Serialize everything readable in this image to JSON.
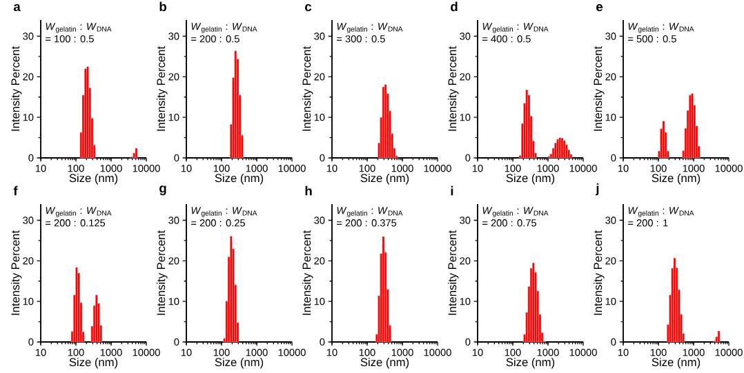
{
  "chart_data": [
    {
      "type": "histogram",
      "title": "a",
      "xlabel": "Size (nm)",
      "ylabel": "Intensity Percent",
      "annotations": [
        "*W*$_{gelatin}$ : *W*$_{DNA}$",
        "= 100 : 0.5"
      ],
      "bins": [
        130,
        150,
        174,
        201,
        232,
        268,
        310,
        358,
        414,
        478,
        552,
        638,
        738,
        853,
        985,
        1138,
        1315,
        1520,
        1757,
        2030,
        2346,
        2711,
        3133,
        3620,
        4184,
        4834,
        5586
      ],
      "values": [
        6.3,
        15.5,
        22.0,
        22.5,
        17.3,
        9.8,
        3.2,
        0,
        0,
        0,
        0,
        0,
        0,
        0,
        0,
        0,
        0,
        0,
        0,
        0,
        0,
        0,
        0,
        0.3,
        1.2,
        2.4
      ],
      "color": "#ff0000",
      "log": "x",
      "xlim": [
        10,
        10000
      ],
      "ylim": [
        0,
        34
      ],
      "xticks": [
        10,
        100,
        1000,
        10000
      ],
      "yticks": [
        0,
        10,
        20,
        30
      ]
    },
    {
      "type": "histogram",
      "title": "b",
      "xlabel": "Size (nm)",
      "ylabel": "Intensity Percent",
      "annotations": [
        "*W*$_{gelatin}$ : *W*$_{DNA}$",
        "= 200 : 0.5"
      ],
      "bins": [
        174,
        201,
        232,
        268,
        310,
        358,
        414
      ],
      "values": [
        8.3,
        19.8,
        26.4,
        24.4,
        15.5,
        5.6
      ],
      "color": "#ff0000",
      "log": "x",
      "xlim": [
        10,
        10000
      ],
      "ylim": [
        0,
        34
      ],
      "xticks": [
        10,
        100,
        1000,
        10000
      ],
      "yticks": [
        0,
        10,
        20,
        30
      ]
    },
    {
      "type": "histogram",
      "title": "c",
      "xlabel": "Size (nm)",
      "ylabel": "Intensity Percent",
      "annotations": [
        "*W*$_{gelatin}$ : *W*$_{DNA}$",
        "= 300 : 0.5"
      ],
      "bins": [
        201,
        232,
        268,
        310,
        358,
        414,
        478,
        552,
        638,
        738
      ],
      "values": [
        3.7,
        10.0,
        17.5,
        18.1,
        15.9,
        11.6,
        6.0,
        2.4,
        0.5
      ],
      "color": "#ff0000",
      "log": "x",
      "xlim": [
        10,
        10000
      ],
      "ylim": [
        0,
        34
      ],
      "xticks": [
        10,
        100,
        1000,
        10000
      ],
      "yticks": [
        0,
        10,
        20,
        30
      ]
    },
    {
      "type": "histogram",
      "title": "d",
      "xlabel": "Size (nm)",
      "ylabel": "Intensity Percent",
      "annotations": [
        "*W*$_{gelatin}$ : *W*$_{DNA}$",
        "= 400 : 0.5"
      ],
      "bins": [
        150,
        174,
        201,
        232,
        268,
        310,
        358,
        414,
        478,
        552,
        638,
        738,
        853,
        985,
        1138,
        1315,
        1520,
        1757,
        2030,
        2346,
        2711,
        3133,
        3620,
        4184,
        4834
      ],
      "values": [
        0.6,
        8.5,
        13.5,
        16.8,
        15.5,
        10.3,
        4.2,
        1.2,
        0,
        0,
        0,
        0,
        0,
        0.4,
        1.0,
        2.4,
        3.7,
        4.6,
        5.0,
        4.9,
        4.3,
        3.3,
        2.0,
        0.9
      ],
      "color": "#ff0000",
      "log": "x",
      "xlim": [
        10,
        10000
      ],
      "ylim": [
        0,
        34
      ],
      "xticks": [
        10,
        100,
        1000,
        10000
      ],
      "yticks": [
        0,
        10,
        20,
        30
      ]
    },
    {
      "type": "histogram",
      "title": "e",
      "xlabel": "Size (nm)",
      "ylabel": "Intensity Percent",
      "annotations": [
        "*W*$_{gelatin}$ : *W*$_{DNA}$",
        "= 500 : 0.5"
      ],
      "bins": [
        97.3,
        112,
        130,
        150,
        174,
        201,
        232,
        268,
        310,
        358,
        414,
        478,
        552,
        638,
        738,
        853,
        985,
        1138,
        1315,
        1520
      ],
      "values": [
        1.7,
        7.2,
        9.1,
        6.3,
        1.7,
        0,
        0,
        0,
        0,
        0,
        0,
        1.8,
        7.3,
        11.7,
        15.5,
        15.9,
        13.0,
        7.9,
        2.9
      ],
      "color": "#ff0000",
      "log": "x",
      "xlim": [
        10,
        10000
      ],
      "ylim": [
        0,
        34
      ],
      "xticks": [
        10,
        100,
        1000,
        10000
      ],
      "yticks": [
        0,
        10,
        20,
        30
      ]
    },
    {
      "type": "histogram",
      "title": "f",
      "xlabel": "Size (nm)",
      "ylabel": "Intensity Percent",
      "annotations": [
        "*W*$_{gelatin}$ : *W*$_{DNA}$",
        "= 200 : 0.125"
      ],
      "bins": [
        72.9,
        84.3,
        97.3,
        112,
        130,
        150,
        174,
        201,
        232,
        268,
        310,
        358,
        414,
        478,
        552
      ],
      "values": [
        2.6,
        11.6,
        18.4,
        17.0,
        9.7,
        2.5,
        0,
        0,
        0,
        3.9,
        9.0,
        11.6,
        9.5,
        4.1
      ],
      "color": "#ff0000",
      "log": "x",
      "xlim": [
        10,
        10000
      ],
      "ylim": [
        0,
        34
      ],
      "xticks": [
        10,
        100,
        1000,
        10000
      ],
      "yticks": [
        0,
        10,
        20,
        30
      ]
    },
    {
      "type": "histogram",
      "title": "g",
      "xlabel": "Size (nm)",
      "ylabel": "Intensity Percent",
      "annotations": [
        "*W*$_{gelatin}$ : *W*$_{DNA}$",
        "= 200 : 0.25"
      ],
      "bins": [
        112,
        130,
        150,
        174,
        201,
        232,
        268,
        310
      ],
      "values": [
        0.9,
        10.1,
        21.0,
        26.1,
        23.0,
        14.1,
        4.8
      ],
      "color": "#ff0000",
      "log": "x",
      "xlim": [
        10,
        10000
      ],
      "ylim": [
        0,
        34
      ],
      "xticks": [
        10,
        100,
        1000,
        10000
      ],
      "yticks": [
        0,
        10,
        20,
        30
      ]
    },
    {
      "type": "histogram",
      "title": "h",
      "xlabel": "Size (nm)",
      "ylabel": "Intensity Percent",
      "annotations": [
        "*W*$_{gelatin}$ : *W*$_{DNA}$",
        "= 200 : 0.375"
      ],
      "bins": [
        174,
        201,
        232,
        268,
        310,
        358,
        414,
        478
      ],
      "values": [
        1.9,
        11.4,
        21.8,
        26.0,
        22.1,
        13.0,
        4.1
      ],
      "color": "#ff0000",
      "log": "x",
      "xlim": [
        10,
        10000
      ],
      "ylim": [
        0,
        34
      ],
      "xticks": [
        10,
        100,
        1000,
        10000
      ],
      "yticks": [
        0,
        10,
        20,
        30
      ]
    },
    {
      "type": "histogram",
      "title": "i",
      "xlabel": "Size (nm)",
      "ylabel": "Intensity Percent",
      "annotations": [
        "*W*$_{gelatin}$ : *W*$_{DNA}$",
        "= 200 : 0.75"
      ],
      "bins": [
        201,
        232,
        268,
        310,
        358,
        414,
        478,
        552,
        638,
        738,
        853
      ],
      "values": [
        1.9,
        7.3,
        13.7,
        18.2,
        19.5,
        17.2,
        12.6,
        6.8,
        2.3,
        0.2
      ],
      "color": "#ff0000",
      "log": "x",
      "xlim": [
        10,
        10000
      ],
      "ylim": [
        0,
        34
      ],
      "xticks": [
        10,
        100,
        1000,
        10000
      ],
      "yticks": [
        0,
        10,
        20,
        30
      ]
    },
    {
      "type": "histogram",
      "title": "j",
      "xlabel": "Size (nm)",
      "ylabel": "Intensity Percent",
      "annotations": [
        "*W*$_{gelatin}$ : *W*$_{DNA}$",
        "= 200 : 1"
      ],
      "bins": [
        174,
        201,
        232,
        268,
        310,
        358,
        414,
        478,
        552,
        638,
        738,
        853,
        985,
        1138,
        1315,
        1520,
        1757,
        2030,
        2346,
        2711,
        3133,
        3620,
        4184,
        4834,
        5586
      ],
      "values": [
        4.3,
        11.6,
        18.2,
        20.7,
        18.3,
        12.9,
        6.8,
        2.1,
        0,
        0,
        0,
        0,
        0,
        0,
        0,
        0,
        0,
        0,
        0,
        0,
        0,
        0.3,
        1.3,
        2.7
      ],
      "color": "#ff0000",
      "log": "x",
      "xlim": [
        10,
        10000
      ],
      "ylim": [
        0,
        34
      ],
      "xticks": [
        10,
        100,
        1000,
        10000
      ],
      "yticks": [
        0,
        10,
        20,
        30
      ]
    }
  ]
}
